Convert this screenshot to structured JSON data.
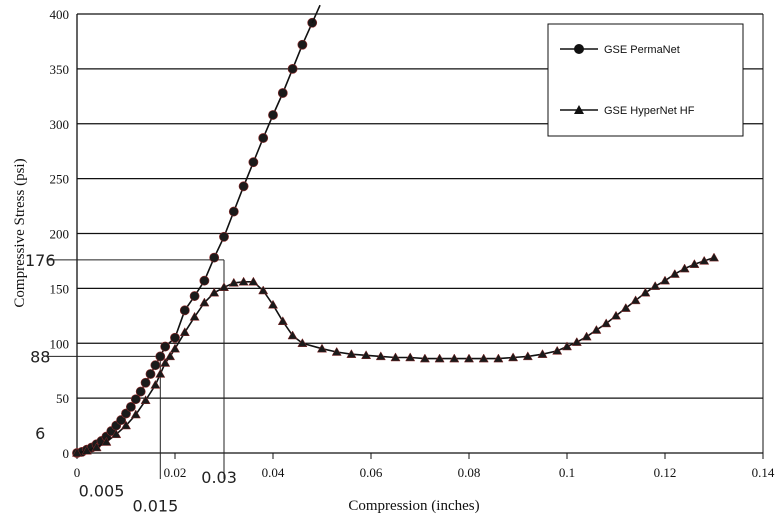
{
  "chart_data": {
    "type": "line",
    "xlabel": "Compression (inches)",
    "ylabel": "Compressive Stress (psi)",
    "xlim": [
      0,
      0.14
    ],
    "ylim": [
      0,
      400
    ],
    "xticks": [
      0,
      0.02,
      0.04,
      0.06,
      0.08,
      0.1,
      0.12,
      0.14
    ],
    "xtick_labels": [
      "0",
      "0.02",
      "0.04",
      "0.06",
      "0.08",
      "0.1",
      "0.12",
      "0.14"
    ],
    "yticks": [
      0,
      50,
      100,
      150,
      200,
      250,
      300,
      350,
      400
    ],
    "ytick_labels": [
      "0",
      "50",
      "100",
      "150",
      "200",
      "250",
      "300",
      "350",
      "400"
    ],
    "grid": "horizontal",
    "legend_position": "top-right",
    "series": [
      {
        "name": "GSE PermaNet",
        "marker": "circle",
        "points": [
          [
            0,
            0
          ],
          [
            0.001,
            1
          ],
          [
            0.002,
            3
          ],
          [
            0.003,
            5
          ],
          [
            0.004,
            8
          ],
          [
            0.005,
            11
          ],
          [
            0.006,
            15
          ],
          [
            0.007,
            20
          ],
          [
            0.008,
            25
          ],
          [
            0.009,
            30
          ],
          [
            0.01,
            36
          ],
          [
            0.011,
            42
          ],
          [
            0.012,
            49
          ],
          [
            0.013,
            56
          ],
          [
            0.014,
            64
          ],
          [
            0.015,
            72
          ],
          [
            0.016,
            80
          ],
          [
            0.017,
            88
          ],
          [
            0.018,
            97
          ],
          [
            0.02,
            105
          ],
          [
            0.022,
            130
          ],
          [
            0.024,
            143
          ],
          [
            0.026,
            157
          ],
          [
            0.028,
            178
          ],
          [
            0.03,
            197
          ],
          [
            0.032,
            220
          ],
          [
            0.034,
            243
          ],
          [
            0.036,
            265
          ],
          [
            0.038,
            287
          ],
          [
            0.04,
            308
          ],
          [
            0.042,
            328
          ],
          [
            0.044,
            350
          ],
          [
            0.046,
            372
          ],
          [
            0.048,
            392
          ]
        ]
      },
      {
        "name": "GSE HyperNet HF",
        "marker": "triangle",
        "points": [
          [
            0,
            0
          ],
          [
            0.002,
            2
          ],
          [
            0.004,
            5
          ],
          [
            0.006,
            10
          ],
          [
            0.008,
            17
          ],
          [
            0.01,
            25
          ],
          [
            0.012,
            35
          ],
          [
            0.014,
            48
          ],
          [
            0.016,
            62
          ],
          [
            0.017,
            72
          ],
          [
            0.018,
            82
          ],
          [
            0.019,
            88
          ],
          [
            0.02,
            95
          ],
          [
            0.022,
            110
          ],
          [
            0.024,
            124
          ],
          [
            0.026,
            137
          ],
          [
            0.028,
            146
          ],
          [
            0.03,
            151
          ],
          [
            0.032,
            155
          ],
          [
            0.034,
            156
          ],
          [
            0.036,
            156
          ],
          [
            0.038,
            148
          ],
          [
            0.04,
            135
          ],
          [
            0.042,
            120
          ],
          [
            0.044,
            107
          ],
          [
            0.046,
            100
          ],
          [
            0.05,
            95
          ],
          [
            0.053,
            92
          ],
          [
            0.056,
            90
          ],
          [
            0.059,
            89
          ],
          [
            0.062,
            88
          ],
          [
            0.065,
            87
          ],
          [
            0.068,
            87
          ],
          [
            0.071,
            86
          ],
          [
            0.074,
            86
          ],
          [
            0.077,
            86
          ],
          [
            0.08,
            86
          ],
          [
            0.083,
            86
          ],
          [
            0.086,
            86
          ],
          [
            0.089,
            87
          ],
          [
            0.092,
            88
          ],
          [
            0.095,
            90
          ],
          [
            0.098,
            93
          ],
          [
            0.1,
            97
          ],
          [
            0.102,
            101
          ],
          [
            0.104,
            106
          ],
          [
            0.106,
            112
          ],
          [
            0.108,
            118
          ],
          [
            0.11,
            125
          ],
          [
            0.112,
            132
          ],
          [
            0.114,
            139
          ],
          [
            0.116,
            146
          ],
          [
            0.118,
            152
          ],
          [
            0.12,
            157
          ],
          [
            0.122,
            163
          ],
          [
            0.124,
            168
          ],
          [
            0.126,
            172
          ],
          [
            0.128,
            175
          ],
          [
            0.13,
            178
          ]
        ]
      }
    ],
    "annotations": [
      {
        "text": "6",
        "x": -0.0075,
        "y": 18,
        "kind": "handwritten"
      },
      {
        "text": "88",
        "x": -0.0075,
        "y": 88,
        "kind": "handwritten"
      },
      {
        "text": "176",
        "x": -0.0075,
        "y": 176,
        "kind": "handwritten"
      },
      {
        "text": "0.005",
        "x": 0.005,
        "y": -34,
        "kind": "handwritten"
      },
      {
        "text": "0.015",
        "x": 0.016,
        "y": -48,
        "kind": "handwritten"
      },
      {
        "text": "0.03",
        "x": 0.029,
        "y": -22,
        "kind": "handwritten"
      }
    ],
    "reference_lines": [
      {
        "x": 0.017,
        "y": 88
      },
      {
        "x": 0.03,
        "y": 176
      }
    ]
  }
}
